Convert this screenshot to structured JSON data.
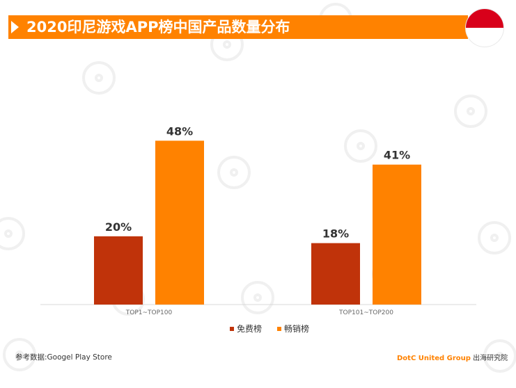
{
  "title": "2020印尼游戏APP榜中国产品数量分布",
  "colors": {
    "free": "#c0330a",
    "grossing": "#ff8200",
    "title_bg": "#ff8200",
    "flag_top": "#d8001a"
  },
  "chart_data": {
    "type": "bar",
    "categories": [
      "TOP1~TOP100",
      "TOP101~TOP200"
    ],
    "series": [
      {
        "name": "免费榜",
        "values": [
          20,
          18
        ],
        "labels": [
          "20%",
          "18%"
        ]
      },
      {
        "name": "畅销榜",
        "values": [
          48,
          41
        ],
        "labels": [
          "48%",
          "41%"
        ]
      }
    ],
    "ylim": [
      0,
      55
    ],
    "legend_position": "bottom",
    "grid": false
  },
  "legend": {
    "free": "免费榜",
    "grossing": "畅销榜"
  },
  "footer": {
    "source": "参考数据:Googel Play Store",
    "brand_en": "DotC United Group",
    "brand_cn": "出海研究院"
  }
}
